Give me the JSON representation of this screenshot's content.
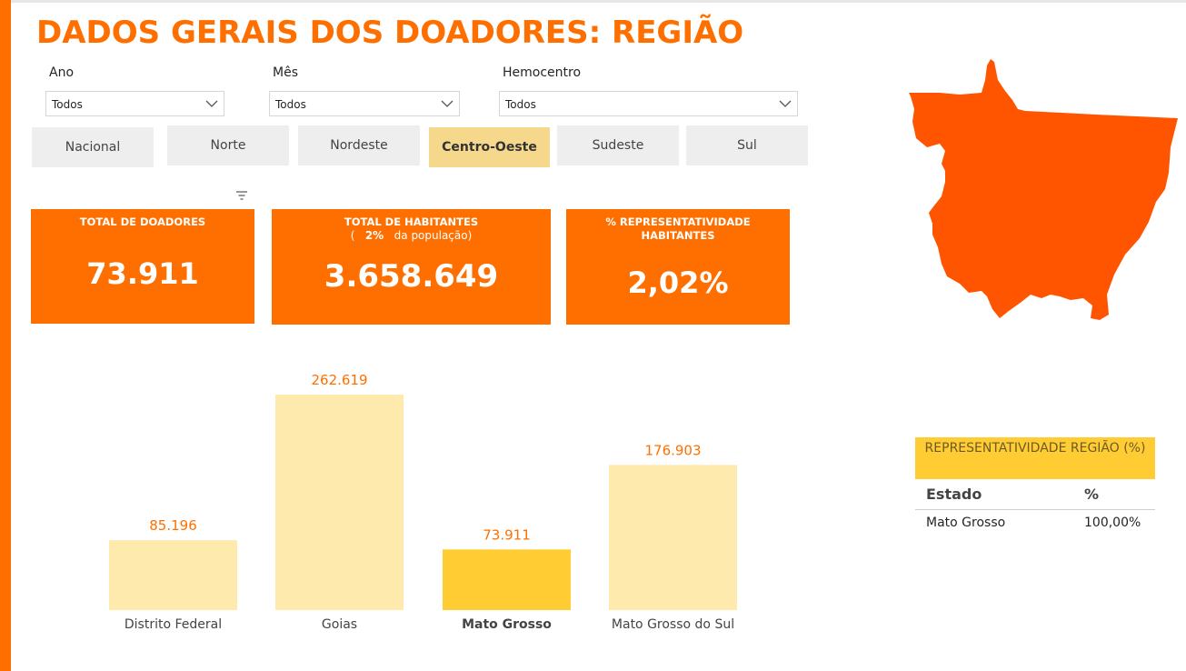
{
  "title": "DADOS GERAIS DOS DOADORES: REGIÃO",
  "filters": {
    "ano": {
      "label": "Ano",
      "value": "Todos"
    },
    "mes": {
      "label": "Mês",
      "value": "Todos"
    },
    "hemocentro": {
      "label": "Hemocentro",
      "value": "Todos"
    }
  },
  "regions": [
    "Nacional",
    "Norte",
    "Nordeste",
    "Centro-Oeste",
    "Sudeste",
    "Sul"
  ],
  "active_region": "Centro-Oeste",
  "kpis": {
    "doadores": {
      "title": "TOTAL DE DOADORES",
      "value": "73.911"
    },
    "habitantes": {
      "title": "TOTAL DE HABITANTES",
      "sub_open": "(",
      "sub_pct": "2%",
      "sub_close": "da população)",
      "value": "3.658.649"
    },
    "representatividade": {
      "title_1": "% REPRESENTATIVIDADE",
      "title_2": "HABITANTES",
      "value": "2,02%"
    }
  },
  "colors": {
    "accent": "#ff6f00",
    "bar": "#ffeaad",
    "bar_selected": "#ffcd33",
    "map": "#ff5500"
  },
  "chart_data": {
    "type": "bar",
    "categories": [
      "Distrito Federal",
      "Goias",
      "Mato Grosso",
      "Mato Grosso do Sul"
    ],
    "values": [
      85196,
      262619,
      73911,
      176903
    ],
    "value_labels": [
      "85.196",
      "262.619",
      "73.911",
      "176.903"
    ],
    "highlighted": "Mato Grosso",
    "ylim": [
      0,
      262619
    ],
    "grid": false,
    "legend": false
  },
  "rep_table": {
    "title": "REPRESENTATIVIDADE REGIÃO (%)",
    "columns": [
      "Estado",
      "%"
    ],
    "rows": [
      {
        "estado": "Mato Grosso",
        "pct": "100,00%"
      }
    ]
  }
}
